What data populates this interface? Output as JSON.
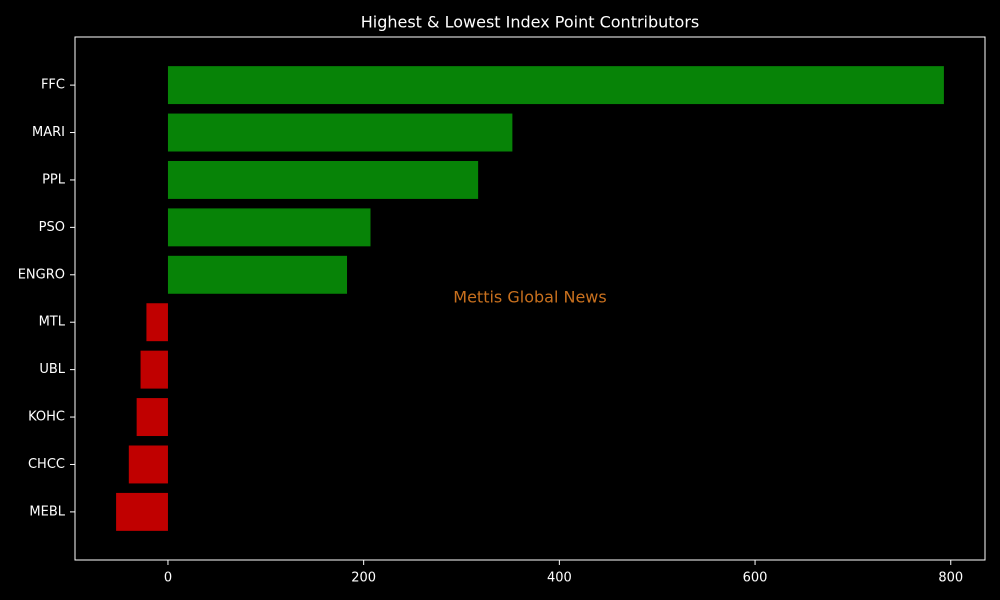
{
  "chart_data": {
    "type": "barh",
    "title": "Highest & Lowest Index Point Contributors",
    "annotation": "Mettis Global News",
    "categories": [
      "FFC",
      "MARI",
      "PPL",
      "PSO",
      "ENGRO",
      "MTL",
      "UBL",
      "KOHC",
      "CHCC",
      "MEBL"
    ],
    "values": [
      793,
      352,
      317,
      207,
      183,
      -22,
      -28,
      -32,
      -40,
      -53
    ],
    "colors": [
      "#078307",
      "#078307",
      "#078307",
      "#078307",
      "#078307",
      "#c00000",
      "#c00000",
      "#c00000",
      "#c00000",
      "#c00000"
    ],
    "xlim": [
      -95,
      835
    ],
    "xticks": [
      0,
      200,
      400,
      600,
      800
    ],
    "grid": false
  }
}
